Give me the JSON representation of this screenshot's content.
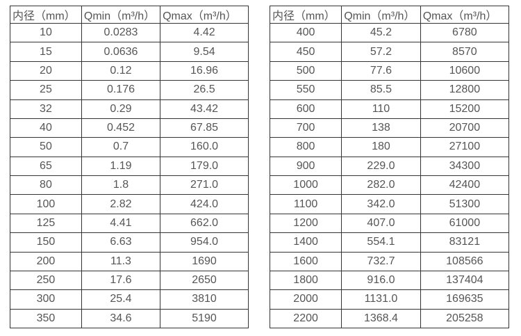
{
  "page": {
    "background": "#ffffff"
  },
  "colors": {
    "border": "#333333",
    "text": "#555555"
  },
  "tables": [
    {
      "name": "flow-table-small-diameters",
      "headers": [
        "内径（mm）",
        "Qmin（m³/h）",
        "Qmax（m³/h）"
      ],
      "rows": [
        [
          "10",
          "0.0283",
          "4.42"
        ],
        [
          "15",
          "0.0636",
          "9.54"
        ],
        [
          "20",
          "0.12",
          "16.96"
        ],
        [
          "25",
          "0.176",
          "26.5"
        ],
        [
          "32",
          "0.29",
          "43.42"
        ],
        [
          "40",
          "0.452",
          "67.85"
        ],
        [
          "50",
          "0.7",
          "160.0"
        ],
        [
          "65",
          "1.19",
          "179.0"
        ],
        [
          "80",
          "1.8",
          "271.0"
        ],
        [
          "100",
          "2.82",
          "424.0"
        ],
        [
          "125",
          "4.41",
          "662.0"
        ],
        [
          "150",
          "6.63",
          "954.0"
        ],
        [
          "200",
          "11.3",
          "1690"
        ],
        [
          "250",
          "17.6",
          "2650"
        ],
        [
          "300",
          "25.4",
          "3810"
        ],
        [
          "350",
          "34.6",
          "5190"
        ]
      ]
    },
    {
      "name": "flow-table-large-diameters",
      "headers": [
        "内径（mm）",
        "Qmin（m³/h）",
        "Qmax（m³/h）"
      ],
      "rows": [
        [
          "400",
          "45.2",
          "6780"
        ],
        [
          "450",
          "57.2",
          "8570"
        ],
        [
          "500",
          "77.6",
          "10600"
        ],
        [
          "550",
          "85.5",
          "12800"
        ],
        [
          "600",
          "110",
          "15200"
        ],
        [
          "700",
          "138",
          "20700"
        ],
        [
          "800",
          "180",
          "27100"
        ],
        [
          "900",
          "229.0",
          "34300"
        ],
        [
          "1000",
          "282.0",
          "42400"
        ],
        [
          "1100",
          "342.0",
          "51300"
        ],
        [
          "1200",
          "407.0",
          "61000"
        ],
        [
          "1400",
          "554.1",
          "83121"
        ],
        [
          "1600",
          "732.7",
          "108566"
        ],
        [
          "1800",
          "916.0",
          "137404"
        ],
        [
          "2000",
          "1131.0",
          "169635"
        ],
        [
          "2200",
          "1368.4",
          "205258"
        ]
      ]
    }
  ]
}
